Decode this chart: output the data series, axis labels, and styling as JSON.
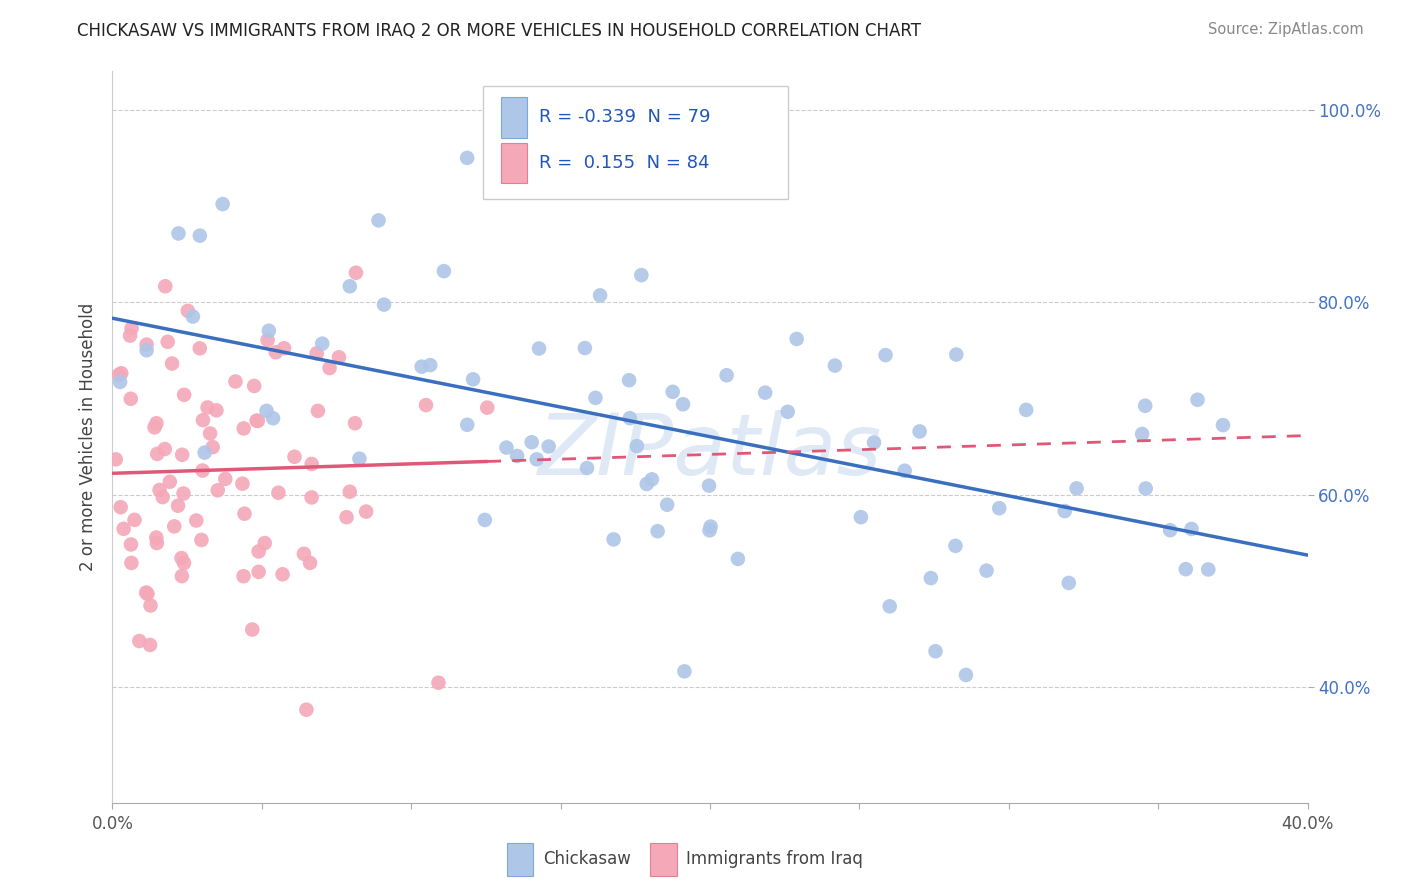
{
  "title": "CHICKASAW VS IMMIGRANTS FROM IRAQ 2 OR MORE VEHICLES IN HOUSEHOLD CORRELATION CHART",
  "source": "Source: ZipAtlas.com",
  "ylabel": "2 or more Vehicles in Household",
  "xlabel_chickasaw": "Chickasaw",
  "xlabel_iraq": "Immigrants from Iraq",
  "x_min": 0.0,
  "x_max": 0.4,
  "y_min": 0.28,
  "y_max": 1.04,
  "x_ticks": [
    0.0,
    0.05,
    0.1,
    0.15,
    0.2,
    0.25,
    0.3,
    0.35,
    0.4
  ],
  "y_ticks": [
    0.4,
    0.6,
    0.8,
    1.0
  ],
  "y_tick_labels": [
    "40.0%",
    "60.0%",
    "80.0%",
    "100.0%"
  ],
  "R_chickasaw": -0.339,
  "N_chickasaw": 79,
  "R_iraq": 0.155,
  "N_iraq": 84,
  "color_chickasaw": "#aec6e8",
  "color_iraq": "#f4a8b8",
  "color_line_chickasaw": "#3a6fbf",
  "color_line_iraq": "#e05878",
  "watermark": "ZIPatlas"
}
